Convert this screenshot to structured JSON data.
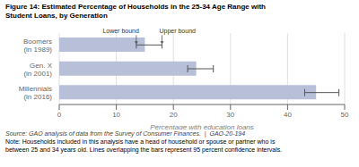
{
  "chart_data": {
    "type": "bar",
    "orientation": "horizontal",
    "title": "Figure 14: Estimated Percentage of Households in the 25-34 Age Range with\nStudent Loans, by Generation",
    "categories": [
      "Boomers\n(in 1989)",
      "Gen. X\n(in 2001)",
      "Millennials\n(in 2016)"
    ],
    "values": [
      15.0,
      24.0,
      45.0
    ],
    "lower_bounds": [
      13.5,
      22.5,
      43.0
    ],
    "upper_bounds": [
      18.0,
      27.0,
      49.0
    ],
    "color": "#b8bfd8",
    "xlabel": "Percentage with education loans",
    "xlim": [
      0,
      50
    ],
    "xticks": [
      0,
      10,
      20,
      30,
      40,
      50
    ],
    "grid": true,
    "annotations": [
      {
        "text": "Lower bound",
        "x": 13.5,
        "category": "Boomers\n(in 1989)"
      },
      {
        "text": "Upper bound",
        "x": 18.0,
        "category": "Boomers\n(in 1989)"
      }
    ],
    "source": "Source: GAO analysis of data from the Survey of Consumer Finances.  |  GAO-20-194",
    "note": "Note: Households included in this analysis have a head of household or spouse or partner who is\nbetween 25 and 34 years old. Lines overlapping the bars represent 95 percent confidence intervals."
  }
}
